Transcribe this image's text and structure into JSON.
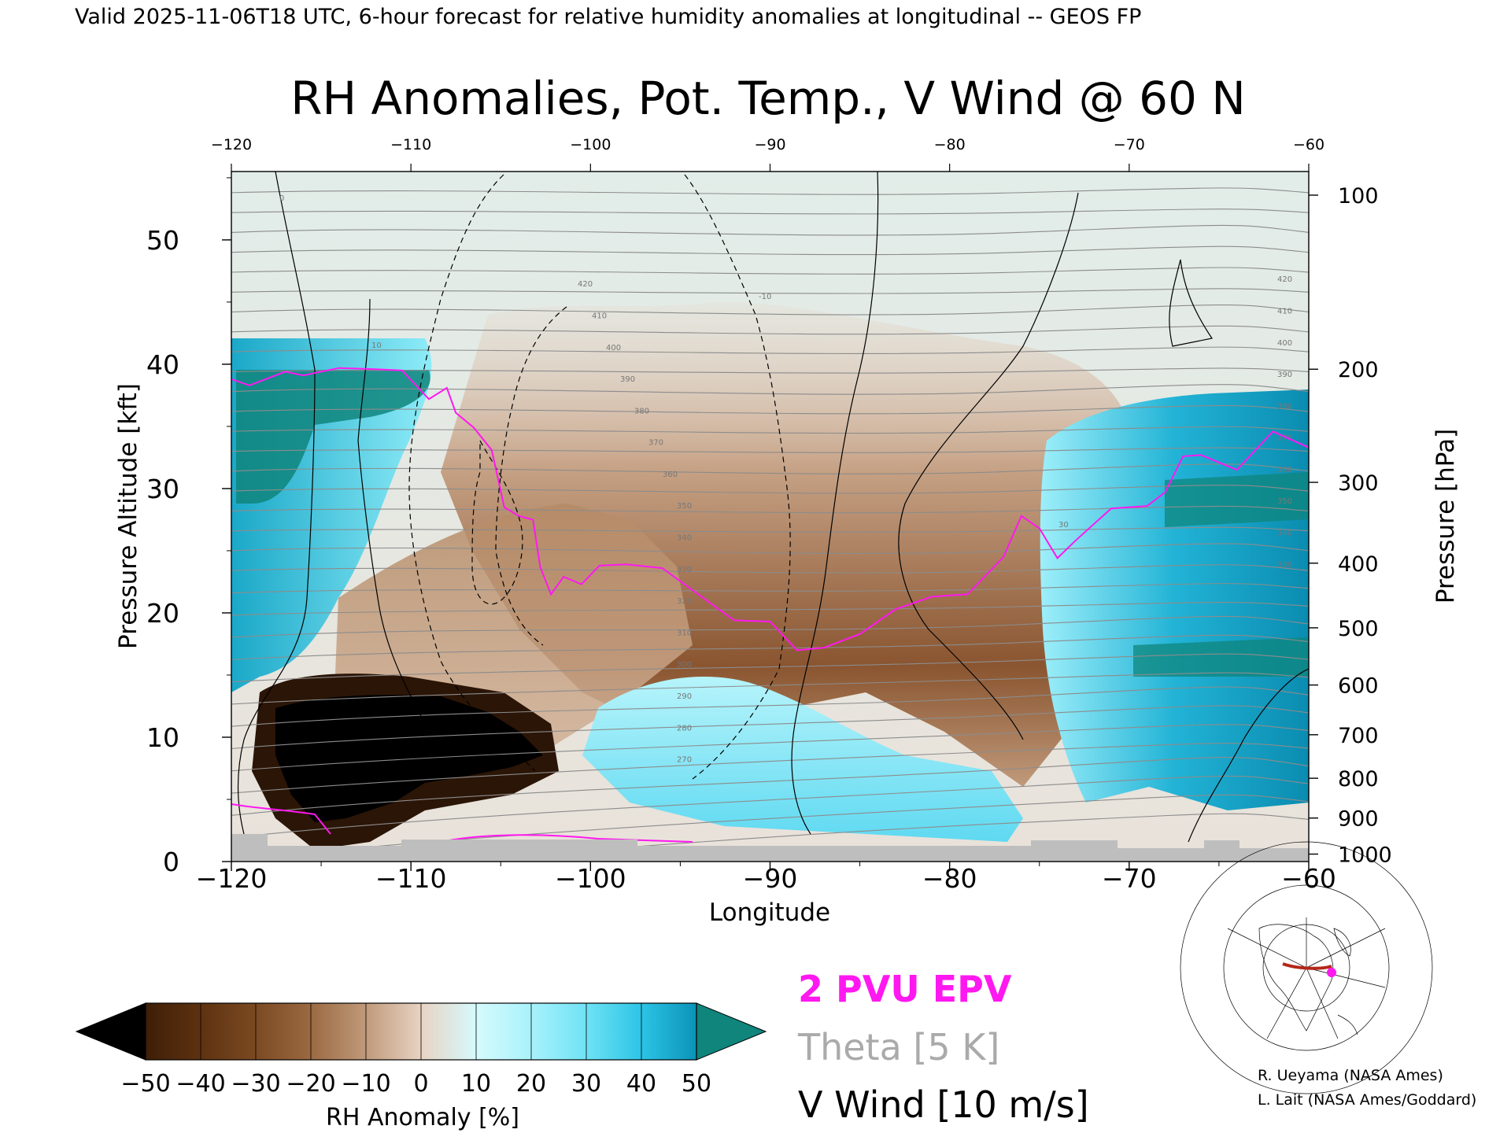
{
  "header": {
    "top_caption": "Valid 2025-11-06T18 UTC, 6-hour forecast for relative humidity anomalies at longitudinal -- GEOS FP",
    "title": "RH Anomalies, Pot. Temp., V Wind @ 60 N"
  },
  "chart_data": {
    "type": "heatmap",
    "title": "RH Anomalies, Pot. Temp., V Wind @ 60 N",
    "xlabel": "Longitude",
    "ylabel": "Pressure Altitude [kft]",
    "ylabel_right": "Pressure [hPa]",
    "xlim": [
      -120,
      -60
    ],
    "ylim": [
      0,
      55.5
    ],
    "x_ticks": [
      -120,
      -110,
      -100,
      -90,
      -80,
      -70,
      -60
    ],
    "x_tick_labels": [
      "−120",
      "−110",
      "−100",
      "−90",
      "−80",
      "−70",
      "−60"
    ],
    "y_ticks": [
      0,
      10,
      20,
      30,
      40,
      50
    ],
    "y_tick_labels": [
      "0",
      "10",
      "20",
      "30",
      "40",
      "50"
    ],
    "pressure_levels": [
      {
        "label": "100",
        "kft": 53.6
      },
      {
        "label": "200",
        "kft": 39.6
      },
      {
        "label": "300",
        "kft": 30.5
      },
      {
        "label": "400",
        "kft": 24.0
      },
      {
        "label": "500",
        "kft": 18.8
      },
      {
        "label": "600",
        "kft": 14.2
      },
      {
        "label": "700",
        "kft": 10.2
      },
      {
        "label": "800",
        "kft": 6.7
      },
      {
        "label": "900",
        "kft": 3.5
      },
      {
        "label": "1000",
        "kft": 0.6
      }
    ],
    "colorbar": {
      "label": "RH Anomaly [%]",
      "tick_labels": [
        "−50",
        "−40",
        "−30",
        "−20",
        "−10",
        "0",
        "10",
        "20",
        "30",
        "40",
        "50"
      ],
      "colors": [
        "#3e1e07",
        "#5e3210",
        "#7b4a22",
        "#9b6a42",
        "#c09a7b",
        "#e8d3c4",
        "#d6fafc",
        "#a8f2fb",
        "#6fe2f5",
        "#2cc4e6",
        "#0a93b8"
      ],
      "under_color": "#000000",
      "over_color": "#0f857c"
    },
    "legend": [
      {
        "name": "2 PVU EPV",
        "color": "#ff18f0"
      },
      {
        "name": "Theta [5 K]",
        "color": "#aaaaaa"
      },
      {
        "name": "V Wind [10 m/s]",
        "color": "#000000"
      }
    ],
    "theta_levels_shown": [
      "270",
      "280",
      "290",
      "300",
      "310",
      "320",
      "330",
      "340",
      "350",
      "360",
      "370",
      "380",
      "390",
      "400",
      "410",
      "420"
    ],
    "vwind_labels_shown": [
      "0",
      "10",
      "-10",
      "30"
    ],
    "epv_2pvu": {
      "x": [
        -120,
        -119,
        -117,
        -116,
        -114,
        -112,
        -110.5,
        -109,
        -108,
        -107.5,
        -106.5,
        -105.5,
        -104.8,
        -104,
        -103.2,
        -102.8,
        -102.2,
        -101.5,
        -100.5,
        -99.5,
        -98,
        -96,
        -94,
        -92,
        -90,
        -88.5,
        -87,
        -85,
        -83,
        -81,
        -79,
        -77,
        -76,
        -75,
        -74,
        -73,
        -71,
        -69,
        -68,
        -67,
        -66,
        -64,
        -62,
        -60
      ],
      "y": [
        38.8,
        38.3,
        39.4,
        39.1,
        39.7,
        39.6,
        39.5,
        37.2,
        38.1,
        36.1,
        34.9,
        33.1,
        28.5,
        27.8,
        27.5,
        23.7,
        21.5,
        22.9,
        22.3,
        23.8,
        23.9,
        23.6,
        21.5,
        19.4,
        19.3,
        17.0,
        17.2,
        18.3,
        20.3,
        21.3,
        21.5,
        24.5,
        27.8,
        26.8,
        24.4,
        25.8,
        28.4,
        28.6,
        29.7,
        32.6,
        32.7,
        31.5,
        34.6,
        33.3
      ]
    },
    "grid": false,
    "terrain_color": "#bebebe",
    "inset_map": "north-america-polar-map",
    "credits": [
      "R. Ueyama (NASA Ames)",
      "L. Lait (NASA Ames/Goddard)"
    ]
  }
}
